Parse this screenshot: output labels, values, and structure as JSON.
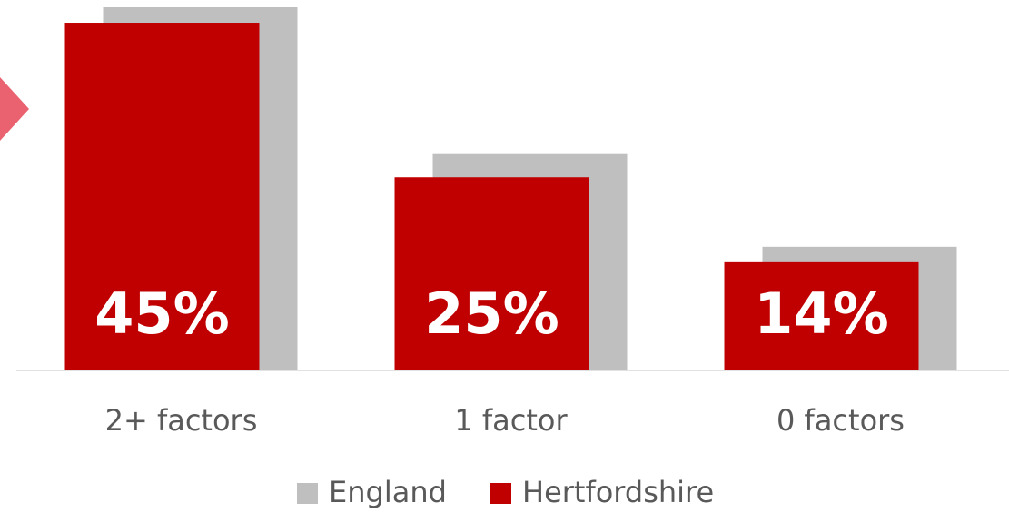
{
  "chart_data": {
    "type": "bar",
    "categories": [
      "2+ factors",
      "1 factor",
      "0 factors"
    ],
    "series": [
      {
        "name": "England",
        "color": "#bfbfbf",
        "values": [
          47,
          28,
          16
        ]
      },
      {
        "name": "Hertfordshire",
        "color": "#c00000",
        "values": [
          45,
          25,
          14
        ],
        "value_labels": [
          "45%",
          "25%",
          "14%"
        ]
      }
    ],
    "legend": "bottom"
  }
}
